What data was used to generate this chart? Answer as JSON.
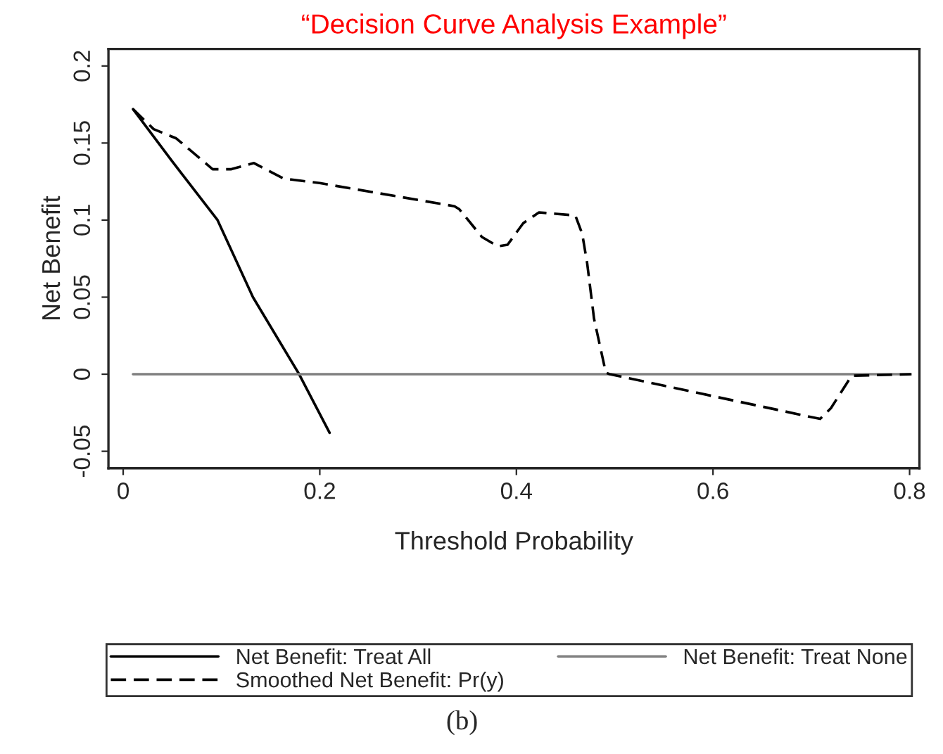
{
  "chart_data": {
    "type": "line",
    "title": "“Decision Curve Analysis Example”",
    "xlabel": "Threshold Probability",
    "ylabel": "Net Benefit",
    "xlim": [
      -0.015,
      0.81
    ],
    "ylim": [
      -0.061,
      0.211
    ],
    "xticks": [
      0,
      0.2,
      0.4,
      0.6,
      0.8
    ],
    "yticks": [
      -0.05,
      0,
      0.05,
      0.1,
      0.15,
      0.2
    ],
    "grid": false,
    "legend": "bottom",
    "marker": "none",
    "series": [
      {
        "name": "Net Benefit: Treat All",
        "color": "#000000",
        "line_style": "solid",
        "x": [
          0.01,
          0.05,
          0.096,
          0.132,
          0.179,
          0.21
        ],
        "values": [
          0.172,
          0.138,
          0.1,
          0.05,
          0,
          -0.038
        ]
      },
      {
        "name": "Net Benefit: Treat None",
        "color": "#808080",
        "line_style": "solid",
        "x": [
          0.01,
          0.8
        ],
        "values": [
          0,
          0
        ]
      },
      {
        "name": "Smoothed Net Benefit: Pr(y)",
        "color": "#000000",
        "line_style": "dashed",
        "x": [
          0.01,
          0.031,
          0.054,
          0.091,
          0.11,
          0.133,
          0.163,
          0.2,
          0.337,
          0.342,
          0.365,
          0.381,
          0.391,
          0.407,
          0.423,
          0.46,
          0.467,
          0.472,
          0.479,
          0.491,
          0.495,
          0.709,
          0.72,
          0.741,
          0.802
        ],
        "values": [
          0.172,
          0.159,
          0.153,
          0.133,
          0.133,
          0.137,
          0.127,
          0.124,
          0.109,
          0.107,
          0.089,
          0.083,
          0.084,
          0.098,
          0.105,
          0.103,
          0.091,
          0.072,
          0.036,
          0.001,
          0,
          -0.029,
          -0.022,
          -0.001,
          0
        ]
      }
    ],
    "annotations": [
      "(b)"
    ]
  }
}
